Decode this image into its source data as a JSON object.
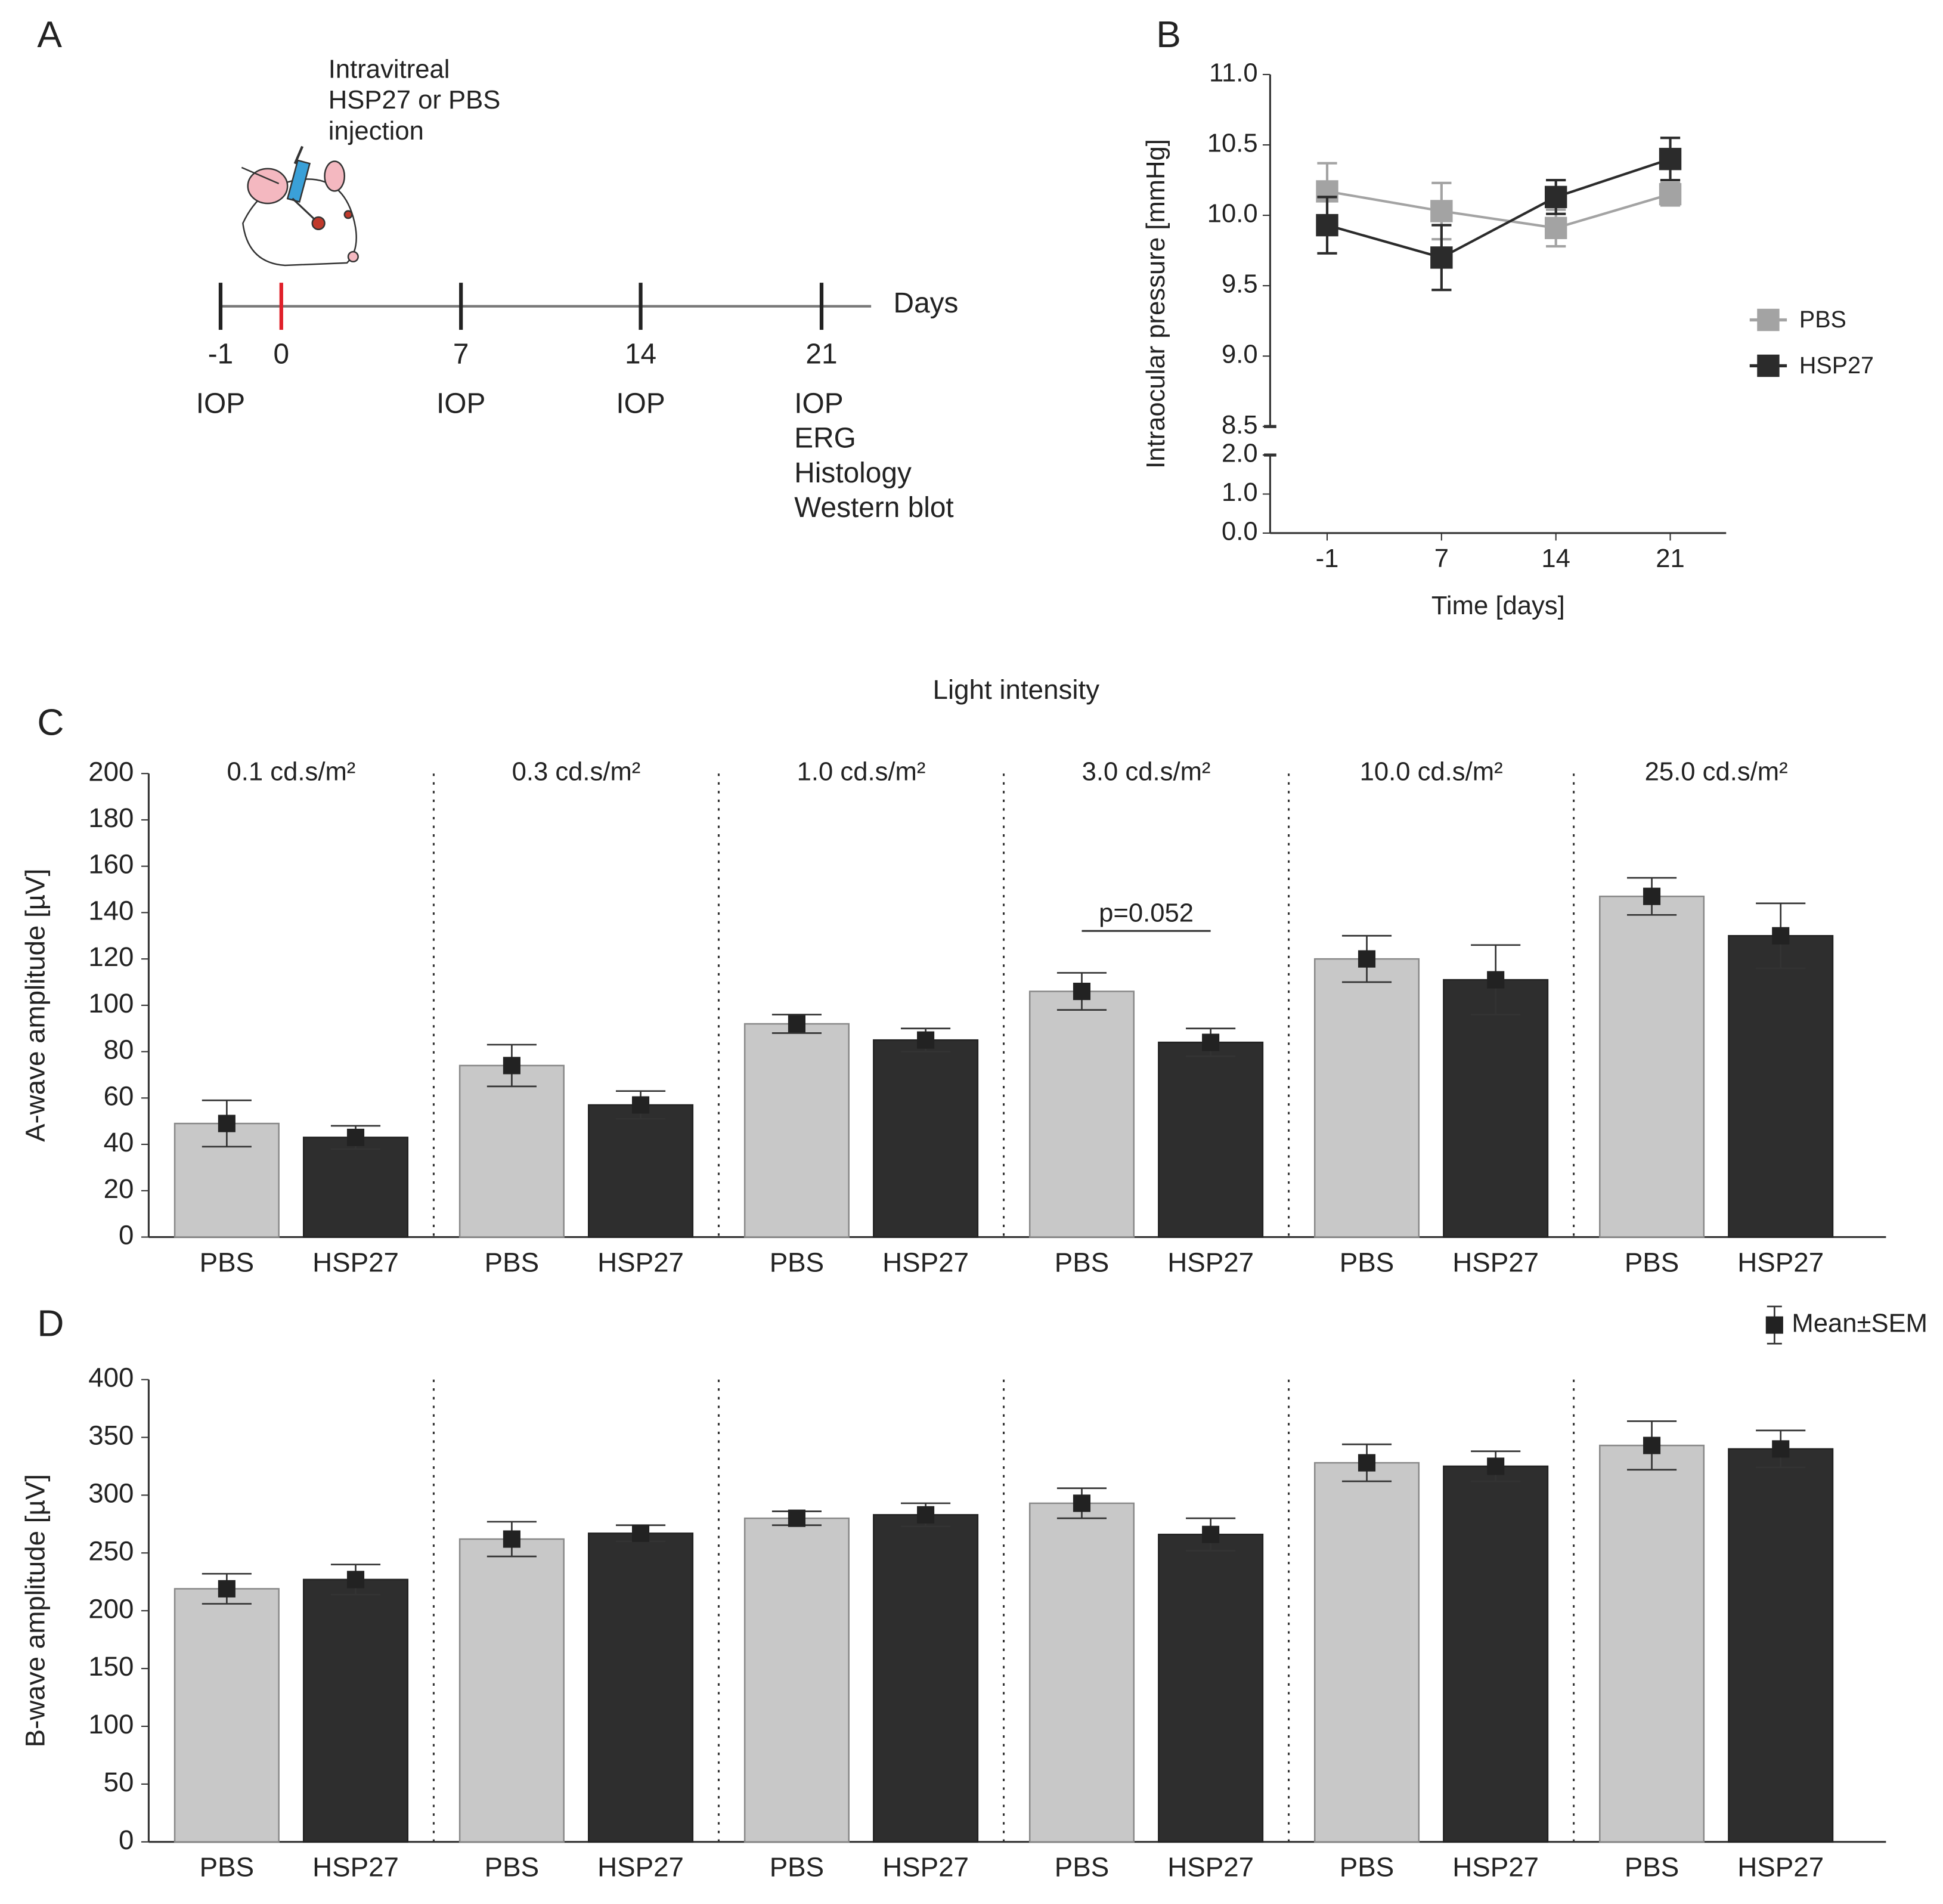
{
  "panel_labels": [
    "A",
    "B",
    "C",
    "D"
  ],
  "diagram": {
    "annotation": [
      "Intravitreal",
      "HSP27 or PBS",
      "injection"
    ],
    "axis_label": "Days",
    "timepoints": [
      -1,
      0,
      7,
      14,
      21
    ],
    "events": [
      [
        "IOP"
      ],
      [],
      [
        "IOP"
      ],
      [
        "IOP"
      ],
      [
        "IOP",
        "ERG",
        "Histology",
        "Western blot"
      ]
    ]
  },
  "chart_data": [
    {
      "type": "line",
      "ylabel": "Intraocular pressure [mmHg]",
      "xlabel": "Time [days]",
      "categories": [
        "-1",
        "7",
        "14",
        "21"
      ],
      "ylim": [
        0,
        11
      ],
      "axis_break": [
        2,
        8.5
      ],
      "yticks": [
        {
          "value": 0,
          "label": "0.0"
        },
        {
          "value": 1,
          "label": "1.0"
        },
        {
          "value": 2,
          "label": "2.0"
        },
        8.5,
        {
          "value": 9,
          "label": "9.0"
        },
        9.5,
        {
          "value": 10,
          "label": "10.0"
        },
        10.5,
        {
          "value": 11,
          "label": "11.0"
        }
      ],
      "series": [
        {
          "name": "PBS",
          "color": "#a3a3a3",
          "values": [
            10.17,
            10.03,
            9.91,
            10.15
          ],
          "errors": [
            0.2,
            0.2,
            0.13,
            0.08
          ]
        },
        {
          "name": "HSP27",
          "color": "#2b2b2b",
          "values": [
            9.93,
            9.7,
            10.13,
            10.4
          ],
          "errors": [
            0.2,
            0.23,
            0.12,
            0.15
          ]
        }
      ]
    },
    {
      "type": "bar",
      "title": "Light intensity",
      "ylabel": "A-wave amplitude [µV]",
      "groups": [
        "0.1 cd.s/m²",
        "0.3 cd.s/m²",
        "1.0 cd.s/m²",
        "3.0 cd.s/m²",
        "10.0 cd.s/m²",
        "25.0 cd.s/m²"
      ],
      "ylim": [
        0,
        200
      ],
      "yticks": [
        0,
        20,
        40,
        60,
        80,
        100,
        120,
        140,
        160,
        180,
        200
      ],
      "annotation": "p=0.052",
      "series": [
        {
          "name": "PBS",
          "color": "#c8c8c8",
          "values": [
            49,
            74,
            92,
            106,
            120,
            147
          ],
          "errors": [
            10,
            9,
            4,
            8,
            10,
            8
          ]
        },
        {
          "name": "HSP27",
          "color": "#2e2e2e",
          "values": [
            43,
            57,
            85,
            84,
            111,
            130
          ],
          "errors": [
            5,
            6,
            5,
            6,
            15,
            14
          ]
        }
      ]
    },
    {
      "type": "bar",
      "ylabel": "B-wave amplitude [µV]",
      "ylim": [
        0,
        400
      ],
      "yticks": [
        0,
        50,
        100,
        150,
        200,
        250,
        300,
        350,
        400
      ],
      "legend_label": "Mean±SEM",
      "series": [
        {
          "name": "PBS",
          "color": "#c8c8c8",
          "values": [
            219,
            262,
            280,
            293,
            328,
            343
          ],
          "errors": [
            13,
            15,
            6,
            13,
            16,
            21
          ]
        },
        {
          "name": "HSP27",
          "color": "#2e2e2e",
          "values": [
            227,
            267,
            283,
            266,
            325,
            340
          ],
          "errors": [
            13,
            7,
            10,
            14,
            13,
            16
          ]
        }
      ]
    }
  ]
}
